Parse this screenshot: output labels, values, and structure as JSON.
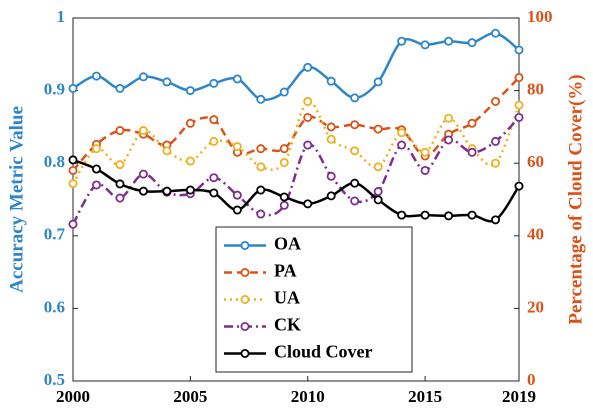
{
  "chart_data": {
    "type": "line",
    "y_label": "Accuracy Metric Value",
    "y2_label": "Percentage of Cloud Cover(%)",
    "y_label_color": "#2e86c8",
    "y2_label_color": "#d95319",
    "x": [
      2000,
      2001,
      2002,
      2003,
      2004,
      2005,
      2006,
      2007,
      2008,
      2009,
      2010,
      2011,
      2012,
      2013,
      2014,
      2015,
      2016,
      2017,
      2018,
      2019
    ],
    "xlim": [
      2000,
      2019
    ],
    "xticks": [
      2000,
      2005,
      2010,
      2015,
      2019
    ],
    "ylim": [
      0.5,
      1
    ],
    "yticks": [
      0.5,
      0.6,
      0.7,
      0.8,
      0.9,
      1
    ],
    "y2lim": [
      0,
      100
    ],
    "y2ticks": [
      0,
      20,
      40,
      60,
      80,
      100
    ],
    "legend": "lower-center",
    "series": [
      {
        "name": "OA",
        "color": "#2e86c8",
        "linestyle": "solid",
        "values": [
          0.903,
          0.92,
          0.903,
          0.919,
          0.912,
          0.9,
          0.91,
          0.916,
          0.888,
          0.898,
          0.932,
          0.913,
          0.89,
          0.912,
          0.968,
          0.963,
          0.968,
          0.966,
          0.979,
          0.956
        ]
      },
      {
        "name": "PA",
        "color": "#d95319",
        "linestyle": "dashed",
        "values": [
          0.79,
          0.826,
          0.845,
          0.84,
          0.825,
          0.855,
          0.86,
          0.815,
          0.82,
          0.82,
          0.863,
          0.85,
          0.853,
          0.847,
          0.846,
          0.81,
          0.84,
          0.855,
          0.885,
          0.918
        ]
      },
      {
        "name": "UA",
        "color": "#edb120",
        "linestyle": "dotted",
        "values": [
          0.772,
          0.82,
          0.798,
          0.845,
          0.817,
          0.803,
          0.83,
          0.823,
          0.795,
          0.801,
          0.885,
          0.833,
          0.817,
          0.795,
          0.842,
          0.815,
          0.862,
          0.82,
          0.8,
          0.88
        ]
      },
      {
        "name": "CK",
        "color": "#7e2f8e",
        "linestyle": "dashdot",
        "values": [
          0.716,
          0.77,
          0.752,
          0.785,
          0.76,
          0.758,
          0.78,
          0.756,
          0.73,
          0.742,
          0.825,
          0.782,
          0.748,
          0.761,
          0.825,
          0.79,
          0.832,
          0.815,
          0.83,
          0.863
        ]
      },
      {
        "name": "Cloud Cover",
        "color": "#000000",
        "linestyle": "solid",
        "axis": "y2",
        "values": [
          60.9,
          58.4,
          54.3,
          52.3,
          52.3,
          52.6,
          51.8,
          47.1,
          52.6,
          50.7,
          48.8,
          51,
          54.5,
          49.9,
          45.7,
          45.7,
          45.5,
          45.7,
          44.4,
          53.7
        ]
      }
    ]
  }
}
